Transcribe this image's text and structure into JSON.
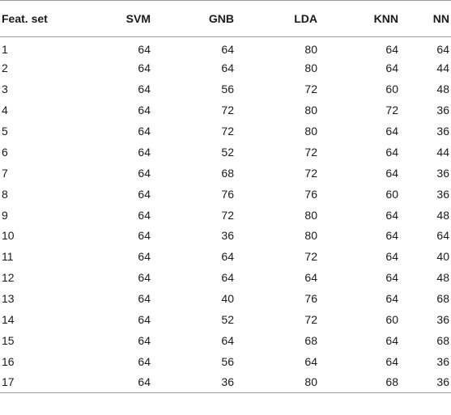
{
  "table": {
    "headers": [
      "Feat. set",
      "SVM",
      "GNB",
      "LDA",
      "KNN",
      "NN"
    ],
    "rows": [
      [
        "1",
        "64",
        "64",
        "80",
        "64",
        "64"
      ],
      [
        "2",
        "64",
        "64",
        "80",
        "64",
        "44"
      ],
      [
        "3",
        "64",
        "56",
        "72",
        "60",
        "48"
      ],
      [
        "4",
        "64",
        "72",
        "80",
        "72",
        "36"
      ],
      [
        "5",
        "64",
        "72",
        "80",
        "64",
        "36"
      ],
      [
        "6",
        "64",
        "52",
        "72",
        "64",
        "44"
      ],
      [
        "7",
        "64",
        "68",
        "72",
        "64",
        "36"
      ],
      [
        "8",
        "64",
        "76",
        "76",
        "60",
        "36"
      ],
      [
        "9",
        "64",
        "72",
        "80",
        "64",
        "48"
      ],
      [
        "10",
        "64",
        "36",
        "80",
        "64",
        "64"
      ],
      [
        "11",
        "64",
        "64",
        "72",
        "64",
        "40"
      ],
      [
        "12",
        "64",
        "64",
        "64",
        "64",
        "48"
      ],
      [
        "13",
        "64",
        "40",
        "76",
        "64",
        "68"
      ],
      [
        "14",
        "64",
        "52",
        "72",
        "60",
        "36"
      ],
      [
        "15",
        "64",
        "64",
        "68",
        "64",
        "68"
      ],
      [
        "16",
        "64",
        "56",
        "64",
        "64",
        "36"
      ],
      [
        "17",
        "64",
        "36",
        "80",
        "68",
        "36"
      ]
    ]
  }
}
